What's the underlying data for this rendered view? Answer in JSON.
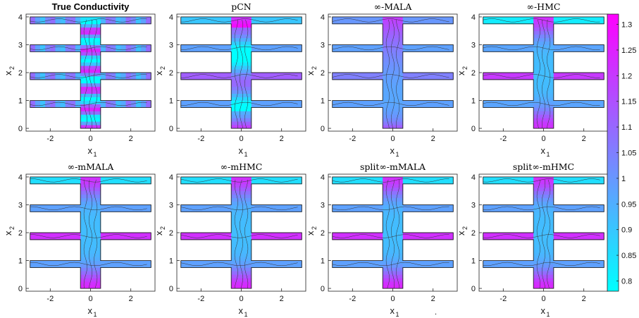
{
  "chart_data": {
    "type": "heatmap",
    "panels": [
      {
        "title": "True Conductivity",
        "title_style": "bold-sans",
        "xlabel": "x",
        "xlabel_sub": "1",
        "ylabel": "x",
        "ylabel_sub": "2",
        "pattern": "true"
      },
      {
        "title": "pCN",
        "title_style": "serif",
        "xlabel": "x",
        "xlabel_sub": "1",
        "ylabel": "x",
        "ylabel_sub": "2",
        "pattern": "pcn"
      },
      {
        "title": "∞-MALA",
        "title_style": "serif",
        "xlabel": "x",
        "xlabel_sub": "1",
        "ylabel": "x",
        "ylabel_sub": "2",
        "pattern": "mala"
      },
      {
        "title": "∞-HMC",
        "title_style": "serif",
        "xlabel": "x",
        "xlabel_sub": "1",
        "ylabel": "x",
        "ylabel_sub": "2",
        "pattern": "hmc"
      },
      {
        "title": "∞-mMALA",
        "title_style": "serif",
        "xlabel": "x",
        "xlabel_sub": "1",
        "ylabel": "x",
        "ylabel_sub": "2",
        "pattern": "mm"
      },
      {
        "title": "∞-mHMC",
        "title_style": "serif",
        "xlabel": "x",
        "xlabel_sub": "1",
        "ylabel": "x",
        "ylabel_sub": "2",
        "pattern": "mm"
      },
      {
        "title": "split∞-mMALA",
        "title_style": "serif",
        "xlabel": "x",
        "xlabel_sub": "1",
        "ylabel": "x",
        "ylabel_sub": "2",
        "pattern": "mm"
      },
      {
        "title": "split∞-mHMC",
        "title_style": "serif",
        "xlabel": "x",
        "xlabel_sub": "1",
        "ylabel": "x",
        "ylabel_sub": "2",
        "pattern": "mm"
      }
    ],
    "x_ticks": [
      "-2",
      "0",
      "2"
    ],
    "x_tick_values": [
      -2,
      0,
      2
    ],
    "y_ticks": [
      "0",
      "1",
      "2",
      "3",
      "4"
    ],
    "y_tick_values": [
      0,
      1,
      2,
      3,
      4
    ],
    "xlim": [
      -3.2,
      3.2
    ],
    "ylim": [
      -0.1,
      4.1
    ],
    "domain_shape": {
      "stem_x": [
        -0.5,
        0.5
      ],
      "stem_y": [
        0,
        4
      ],
      "arms": [
        [
          0.75,
          1.0
        ],
        [
          1.75,
          2.0
        ],
        [
          2.75,
          3.0
        ],
        [
          3.75,
          4.0
        ]
      ],
      "arm_x": [
        -3.0,
        3.0
      ]
    },
    "colorbar": {
      "min": 0.78,
      "max": 1.32,
      "ticks": [
        0.8,
        0.85,
        0.9,
        0.95,
        1,
        1.05,
        1.1,
        1.15,
        1.2,
        1.25,
        1.3
      ],
      "tick_labels": [
        "0.8",
        "0.85",
        "0.9",
        "0.95",
        "1",
        "1.05",
        "1.1",
        "1.15",
        "1.2",
        "1.25",
        "1.3"
      ],
      "colormap": [
        "#00ffff",
        "#ff00ff"
      ]
    },
    "footnote": "."
  }
}
